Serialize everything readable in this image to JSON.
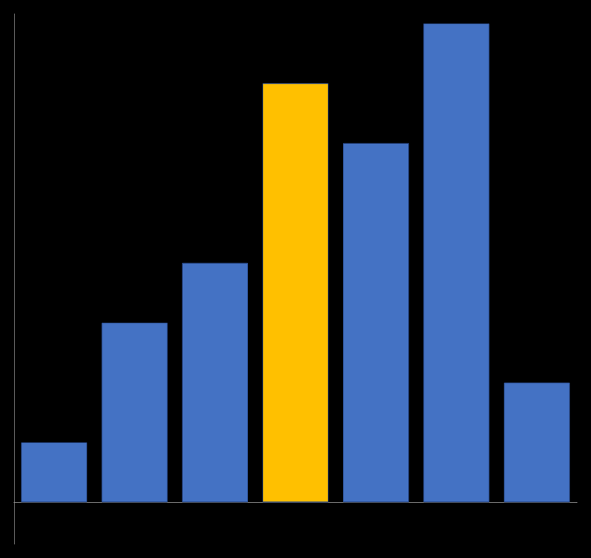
{
  "chart_data": {
    "type": "bar",
    "categories": [
      null,
      null,
      null,
      null,
      null,
      null,
      null
    ],
    "values": [
      1,
      3,
      4,
      7,
      6,
      8,
      2
    ],
    "colors": [
      "#4472C4",
      "#4472C4",
      "#4472C4",
      "#FFC000",
      "#4472C4",
      "#4472C4",
      "#4472C4"
    ],
    "ylim": [
      -0.7,
      8.16
    ],
    "grid": false,
    "tick_labels": false
  }
}
